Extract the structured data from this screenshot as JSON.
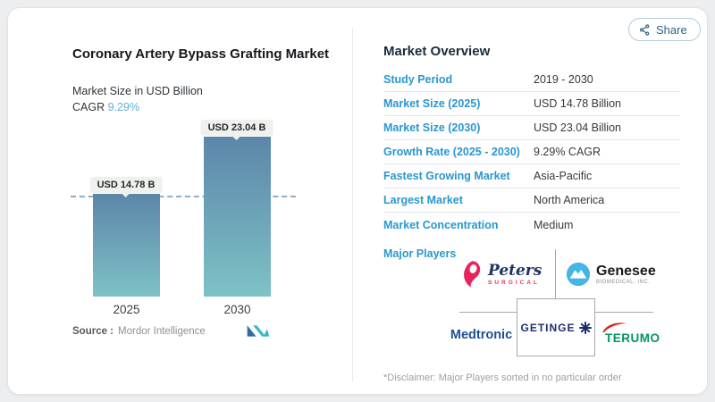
{
  "share": {
    "label": "Share",
    "icon": "share-nodes-icon"
  },
  "chart": {
    "title": "Coronary Artery Bypass Grafting Market",
    "subtitle": "Market Size in USD Billion",
    "cagr_label": "CAGR",
    "cagr_value": "9.29%",
    "source_label": "Source :",
    "source_value": "Mordor Intelligence",
    "logo": "mordor-intelligence-logo"
  },
  "chart_data": {
    "type": "bar",
    "categories": [
      "2025",
      "2030"
    ],
    "values": [
      14.78,
      23.04
    ],
    "bar_labels": [
      "USD 14.78 B",
      "USD 23.04 B"
    ],
    "title": "Coronary Artery Bypass Grafting Market",
    "xlabel": "",
    "ylabel": "Market Size in USD Billion",
    "ylim": [
      0,
      26
    ],
    "reference_line": 14.78,
    "grid": false,
    "legend": false,
    "colors": {
      "bar_gradient_top": "#5c86aa",
      "bar_gradient_bottom": "#7ec2c6",
      "dashed_line": "#90aec5"
    }
  },
  "overview": {
    "heading": "Market Overview",
    "rows": [
      {
        "label": "Study Period",
        "value": "2019 - 2030"
      },
      {
        "label": "Market Size (2025)",
        "value": "USD 14.78 Billion"
      },
      {
        "label": "Market Size (2030)",
        "value": "USD 23.04 Billion"
      },
      {
        "label": "Growth Rate (2025 - 2030)",
        "value": "9.29% CAGR"
      },
      {
        "label": "Fastest Growing Market",
        "value": "Asia-Pacific"
      },
      {
        "label": "Largest Market",
        "value": "North America"
      },
      {
        "label": "Market Concentration",
        "value": "Medium"
      }
    ],
    "major_players_label": "Major Players",
    "players": {
      "peters": {
        "name": "Peters",
        "sub": "SURGICAL"
      },
      "genesee": {
        "name": "Genesee",
        "sub": "BIOMEDICAL, INC."
      },
      "medtronic": {
        "name": "Medtronic"
      },
      "getinge": {
        "name": "GETINGE"
      },
      "terumo": {
        "name": "TERUMO"
      }
    },
    "disclaimer": "*Disclaimer: Major Players sorted in no particular order"
  },
  "accent_colors": {
    "row_label_blue": "#2997cf",
    "cagr_blue": "#5eb0d8",
    "heading_navy": "#1b2b3a"
  }
}
